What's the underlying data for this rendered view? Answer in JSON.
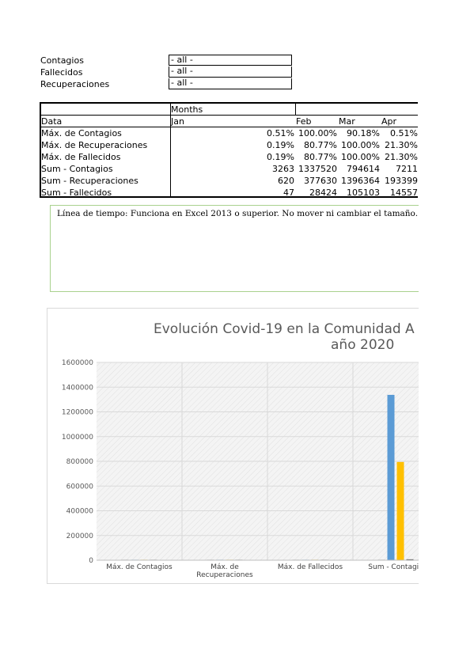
{
  "filters": [
    {
      "label": "Contagios",
      "value": "- all -"
    },
    {
      "label": "Fallecidos",
      "value": "- all -"
    },
    {
      "label": "Recuperaciones",
      "value": "- all -"
    }
  ],
  "pivot": {
    "months_header": "Months",
    "data_header": "Data",
    "months": [
      "Jan",
      "Feb",
      "Mar",
      "Apr"
    ],
    "rows": [
      {
        "label": "Máx. de Contagios",
        "values": [
          "0.51%",
          "100.00%",
          "90.18%",
          "0.51%"
        ]
      },
      {
        "label": "Máx. de Recuperaciones",
        "values": [
          "0.19%",
          "80.77%",
          "100.00%",
          "21.30%"
        ]
      },
      {
        "label": "Máx. de Fallecidos",
        "values": [
          "0.19%",
          "80.77%",
          "100.00%",
          "21.30%"
        ]
      },
      {
        "label": "Sum - Contagios",
        "values": [
          "3263",
          "1337520",
          "794614",
          "7211"
        ]
      },
      {
        "label": "Sum - Recuperaciones",
        "values": [
          "620",
          "377630",
          "1396364",
          "193399"
        ]
      },
      {
        "label": "Sum - Fallecidos",
        "values": [
          "47",
          "28424",
          "105103",
          "14557"
        ]
      }
    ]
  },
  "timeline_note": "Línea de tiempo: Funciona en Excel 2013 o superior. No mover ni cambiar el tamaño.",
  "chart_title_line1": "Evolución Covid-19 en la Comunidad A",
  "chart_title_line2": "año 2020",
  "chart_data": {
    "type": "bar",
    "title": "Evolución Covid-19 en la Comunidad A año 2020",
    "categories": [
      "Máx. de Contagios",
      "Máx. de Recuperaciones",
      "Máx. de Fallecidos",
      "Sum - Contagios"
    ],
    "category_display": [
      [
        "Máx. de Contagios"
      ],
      [
        "Máx. de",
        "Recuperaciones"
      ],
      [
        "Máx. de Fallecidos"
      ],
      [
        "Sum - Contagio"
      ]
    ],
    "series": [
      {
        "values": [
          0.0051,
          0.0019,
          0.0019,
          3263
        ],
        "color": "#7f7f7f"
      },
      {
        "values": [
          1.0,
          0.8077,
          0.8077,
          1337520
        ],
        "color": "#5b9bd5"
      },
      {
        "values": [
          0.9018,
          1.0,
          1.0,
          794614
        ],
        "color": "#ffc000"
      },
      {
        "values": [
          0.0051,
          0.213,
          0.213,
          7211
        ],
        "color": "#404040"
      }
    ],
    "ylim": [
      0,
      1600000
    ],
    "yticks": [
      "0",
      "200000",
      "400000",
      "600000",
      "800000",
      "1000000",
      "1200000",
      "1400000",
      "1600000"
    ],
    "grid": true,
    "xlabel": "",
    "ylabel": ""
  }
}
